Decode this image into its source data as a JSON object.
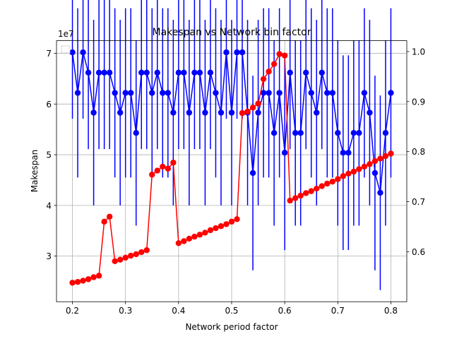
{
  "chart_data": {
    "type": "line",
    "title": "Makespan vs Network bin factor",
    "xlabel": "Network period factor",
    "ylabel": "Makespan",
    "y_offset_label": "1e7",
    "xlim": [
      0.17,
      0.83
    ],
    "ylim": [
      21000000,
      72500000
    ],
    "y2lim": [
      0.5,
      1.0217
    ],
    "grid": true,
    "x_ticks": [
      "0.2",
      "0.3",
      "0.4",
      "0.5",
      "0.6",
      "0.7",
      "0.8"
    ],
    "y_ticks": [
      "3",
      "4",
      "5",
      "6",
      "7"
    ],
    "y2_ticks": [
      "0.6",
      "0.7",
      "0.8",
      "0.9",
      "1.0"
    ],
    "x": [
      0.2,
      0.21,
      0.22,
      0.23,
      0.24,
      0.25,
      0.26,
      0.27,
      0.28,
      0.29,
      0.3,
      0.31,
      0.32,
      0.33,
      0.34,
      0.35,
      0.36,
      0.37,
      0.38,
      0.39,
      0.4,
      0.41,
      0.42,
      0.43,
      0.44,
      0.45,
      0.46,
      0.47,
      0.48,
      0.49,
      0.5,
      0.51,
      0.52,
      0.53,
      0.54,
      0.55,
      0.56,
      0.57,
      0.58,
      0.59,
      0.6,
      0.61,
      0.62,
      0.63,
      0.64,
      0.65,
      0.66,
      0.67,
      0.68,
      0.69,
      0.7,
      0.71,
      0.72,
      0.73,
      0.74,
      0.75,
      0.76,
      0.77,
      0.78,
      0.79,
      0.8
    ],
    "series": [
      {
        "axis": "left",
        "color": "#0000ff",
        "values": [
          70200000,
          62200000,
          70200000,
          66200000,
          58300000,
          66200000,
          66200000,
          66200000,
          62200000,
          58300000,
          62200000,
          62200000,
          54300000,
          66200000,
          66200000,
          62200000,
          66200000,
          62200000,
          62200000,
          58300000,
          66200000,
          66200000,
          58300000,
          66200000,
          66200000,
          58300000,
          66200000,
          62200000,
          58300000,
          70200000,
          58300000,
          70200000,
          70200000,
          58300000,
          46400000,
          58300000,
          62200000,
          62200000,
          54300000,
          62200000,
          50400000,
          66200000,
          54300000,
          54300000,
          66200000,
          62200000,
          58300000,
          66200000,
          62200000,
          62200000,
          54300000,
          50400000,
          50400000,
          54300000,
          54300000,
          62200000,
          58300000,
          46400000,
          42500000,
          54300000,
          62200000
        ],
        "error": [
          13100000,
          16700000,
          13100000,
          15100000,
          18300000,
          15100000,
          15100000,
          15100000,
          16700000,
          18300000,
          16700000,
          16700000,
          18300000,
          15100000,
          15100000,
          16700000,
          15100000,
          16700000,
          16700000,
          18300000,
          15100000,
          15100000,
          18300000,
          15100000,
          15100000,
          18300000,
          15100000,
          16700000,
          18300000,
          13100000,
          18300000,
          13100000,
          13100000,
          18300000,
          19200000,
          18300000,
          16700000,
          16700000,
          18300000,
          16700000,
          19200000,
          15100000,
          18300000,
          18300000,
          15100000,
          16700000,
          18300000,
          15100000,
          16700000,
          16700000,
          18300000,
          19200000,
          19200000,
          18300000,
          18300000,
          16700000,
          18300000,
          19200000,
          19200000,
          18300000,
          16700000
        ]
      },
      {
        "axis": "right",
        "color": "#ff0000",
        "values": [
          0.538,
          0.5395,
          0.542,
          0.545,
          0.549,
          0.552,
          0.66,
          0.67,
          0.581,
          0.584,
          0.588,
          0.592,
          0.595,
          0.599,
          0.603,
          0.754,
          0.762,
          0.77,
          0.766,
          0.778,
          0.617,
          0.621,
          0.626,
          0.63,
          0.634,
          0.638,
          0.643,
          0.647,
          0.651,
          0.655,
          0.66,
          0.665,
          0.877,
          0.88,
          0.888,
          0.896,
          0.945,
          0.96,
          0.975,
          0.995,
          0.992,
          0.702,
          0.707,
          0.712,
          0.717,
          0.721,
          0.726,
          0.731,
          0.736,
          0.74,
          0.745,
          0.751,
          0.756,
          0.76,
          0.765,
          0.77,
          0.775,
          0.781,
          0.786,
          0.791,
          0.796
        ]
      }
    ]
  }
}
